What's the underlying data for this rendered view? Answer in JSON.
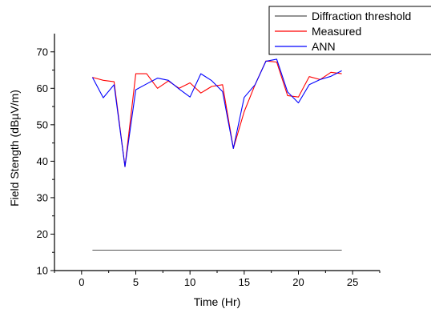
{
  "chart_data": {
    "type": "line",
    "title": "",
    "xlabel": "Time (Hr)",
    "ylabel": "Field Stength (dBµV/m)",
    "xlim": [
      -2.5,
      27.5
    ],
    "ylim": [
      10,
      75
    ],
    "xticks": [
      0,
      5,
      10,
      15,
      20,
      25
    ],
    "yticks": [
      10,
      20,
      30,
      40,
      50,
      60,
      70
    ],
    "x": [
      1,
      2,
      3,
      4,
      5,
      6,
      7,
      8,
      9,
      10,
      11,
      12,
      13,
      14,
      15,
      16,
      17,
      18,
      19,
      20,
      21,
      22,
      23,
      24
    ],
    "legend_position": "top-right",
    "grid": false,
    "series": [
      {
        "name": "Diffraction threshold",
        "color": "#555555",
        "values": [
          15.6,
          15.6,
          15.6,
          15.6,
          15.6,
          15.6,
          15.6,
          15.6,
          15.6,
          15.6,
          15.6,
          15.6,
          15.6,
          15.6,
          15.6,
          15.6,
          15.6,
          15.6,
          15.6,
          15.6,
          15.6,
          15.6,
          15.6,
          15.6
        ]
      },
      {
        "name": "Measured",
        "color": "#ff0000",
        "values": [
          63.0,
          62.2,
          61.8,
          38.5,
          64.0,
          64.0,
          60.0,
          62.0,
          60.0,
          61.5,
          58.7,
          60.5,
          61.0,
          43.5,
          53.6,
          61.0,
          67.5,
          67.2,
          58.0,
          57.6,
          63.2,
          62.4,
          64.4,
          64.0
        ]
      },
      {
        "name": "ANN",
        "color": "#0000ff",
        "values": [
          63.0,
          57.4,
          61.0,
          38.5,
          59.6,
          61.2,
          62.8,
          62.2,
          59.8,
          57.6,
          64.0,
          62.1,
          59.1,
          43.5,
          57.5,
          61.0,
          67.4,
          68.0,
          59.0,
          56.0,
          61.0,
          62.4,
          63.3,
          64.8
        ]
      }
    ]
  }
}
